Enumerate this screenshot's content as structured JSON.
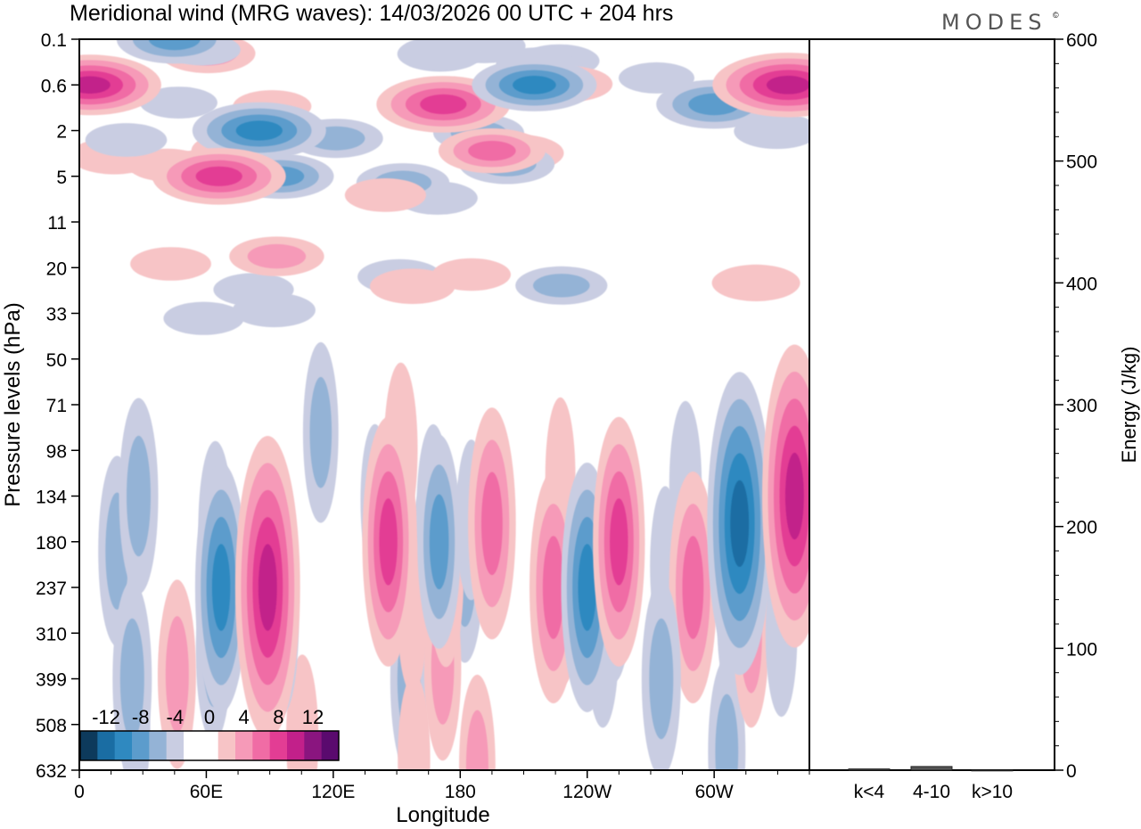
{
  "title": "Meridional wind (MRG waves):  14/03/2026  00 UTC  + 204 hrs",
  "brand": "MODES",
  "brand_mark": "©",
  "chart_data": {
    "type": "heatmap",
    "title": "Meridional wind (MRG waves):  14/03/2026  00 UTC  + 204 hrs",
    "xlabel": "Longitude",
    "ylabel": "Pressure levels (hPa)",
    "x_ticks": [
      "0",
      "60E",
      "120E",
      "180",
      "120W",
      "60W"
    ],
    "x_range_deg": [
      0,
      345
    ],
    "y_ticks": [
      "0.1",
      "0.6",
      "2",
      "5",
      "11",
      "20",
      "33",
      "50",
      "71",
      "98",
      "134",
      "180",
      "237",
      "310",
      "399",
      "508",
      "632"
    ],
    "colorbar": {
      "tick_labels": [
        "-12",
        "-8",
        "-4",
        "0",
        "4",
        "8",
        "12"
      ],
      "levels": [
        -14,
        -12,
        -10,
        -8,
        -6,
        -4,
        -2,
        0,
        2,
        4,
        6,
        8,
        10,
        12,
        14
      ],
      "colors": [
        "#0d3a5c",
        "#1a6da3",
        "#2f89c0",
        "#5c9ccc",
        "#94b3d6",
        "#c9cde2",
        "#ffffff",
        "#ffffff",
        "#f7c4c6",
        "#f69ab8",
        "#f06ca5",
        "#e33d94",
        "#c2208a",
        "#8a157f",
        "#5a0a6e"
      ]
    },
    "features": [
      {
        "lon": 5,
        "level": "0.6",
        "value": 10
      },
      {
        "lon": 45,
        "level": "0.1",
        "value": -7
      },
      {
        "lon": 85,
        "level": "2",
        "value": -9
      },
      {
        "lon": 95,
        "level": "5",
        "value": -6
      },
      {
        "lon": 66,
        "level": "5",
        "value": 9
      },
      {
        "lon": 172,
        "level": "1",
        "value": 9
      },
      {
        "lon": 195,
        "level": "3",
        "value": 6
      },
      {
        "lon": 215,
        "level": "0.6",
        "value": -8
      },
      {
        "lon": 300,
        "level": "1",
        "value": -7
      },
      {
        "lon": 335,
        "level": "0.6",
        "value": 11
      },
      {
        "lon": 67,
        "level": "237",
        "value": -8
      },
      {
        "lon": 89,
        "level": "237",
        "value": 11
      },
      {
        "lon": 146,
        "level": "180",
        "value": 8
      },
      {
        "lon": 170,
        "level": "180",
        "value": -6
      },
      {
        "lon": 195,
        "level": "160",
        "value": 7
      },
      {
        "lon": 224,
        "level": "237",
        "value": 7
      },
      {
        "lon": 240,
        "level": "237",
        "value": -8
      },
      {
        "lon": 255,
        "level": "180",
        "value": 8
      },
      {
        "lon": 290,
        "level": "237",
        "value": 7
      },
      {
        "lon": 312,
        "level": "160",
        "value": -11
      },
      {
        "lon": 338,
        "level": "134",
        "value": 11
      },
      {
        "lon": 28,
        "level": "134",
        "value": -5
      },
      {
        "lon": 25,
        "level": "399",
        "value": -5
      },
      {
        "lon": 275,
        "level": "399",
        "value": -5
      }
    ],
    "secondary_axis": {
      "ylabel": "Energy (J/kg)",
      "ylim": [
        0,
        600
      ],
      "y_ticks": [
        "0",
        "100",
        "200",
        "300",
        "400",
        "500",
        "600"
      ],
      "categories": [
        "k<4",
        "4-10",
        "k>10"
      ],
      "values": [
        1,
        3,
        0
      ]
    }
  }
}
